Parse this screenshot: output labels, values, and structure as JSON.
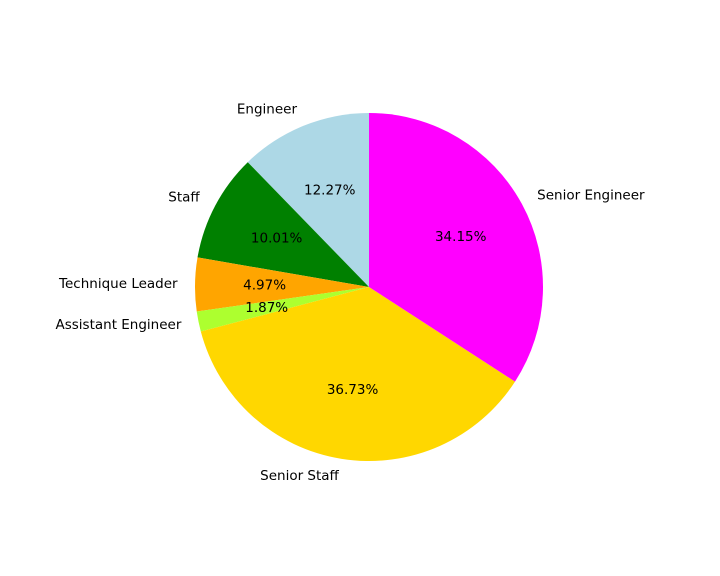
{
  "chart_data": {
    "type": "pie",
    "title": "",
    "start_angle_deg": 90,
    "direction": "counterclockwise",
    "labels": [
      "Engineer",
      "Staff",
      "Technique Leader",
      "Assistant Engineer",
      "Senior Staff",
      "Senior Engineer"
    ],
    "values": [
      12.27,
      10.01,
      4.97,
      1.87,
      36.73,
      34.15
    ],
    "percent_labels": [
      "12.27%",
      "10.01%",
      "4.97%",
      "1.87%",
      "36.73%",
      "34.15%"
    ],
    "colors": [
      "#add8e6",
      "#008000",
      "#ffa500",
      "#adff2f",
      "#ffd700",
      "#ff00ff"
    ]
  }
}
